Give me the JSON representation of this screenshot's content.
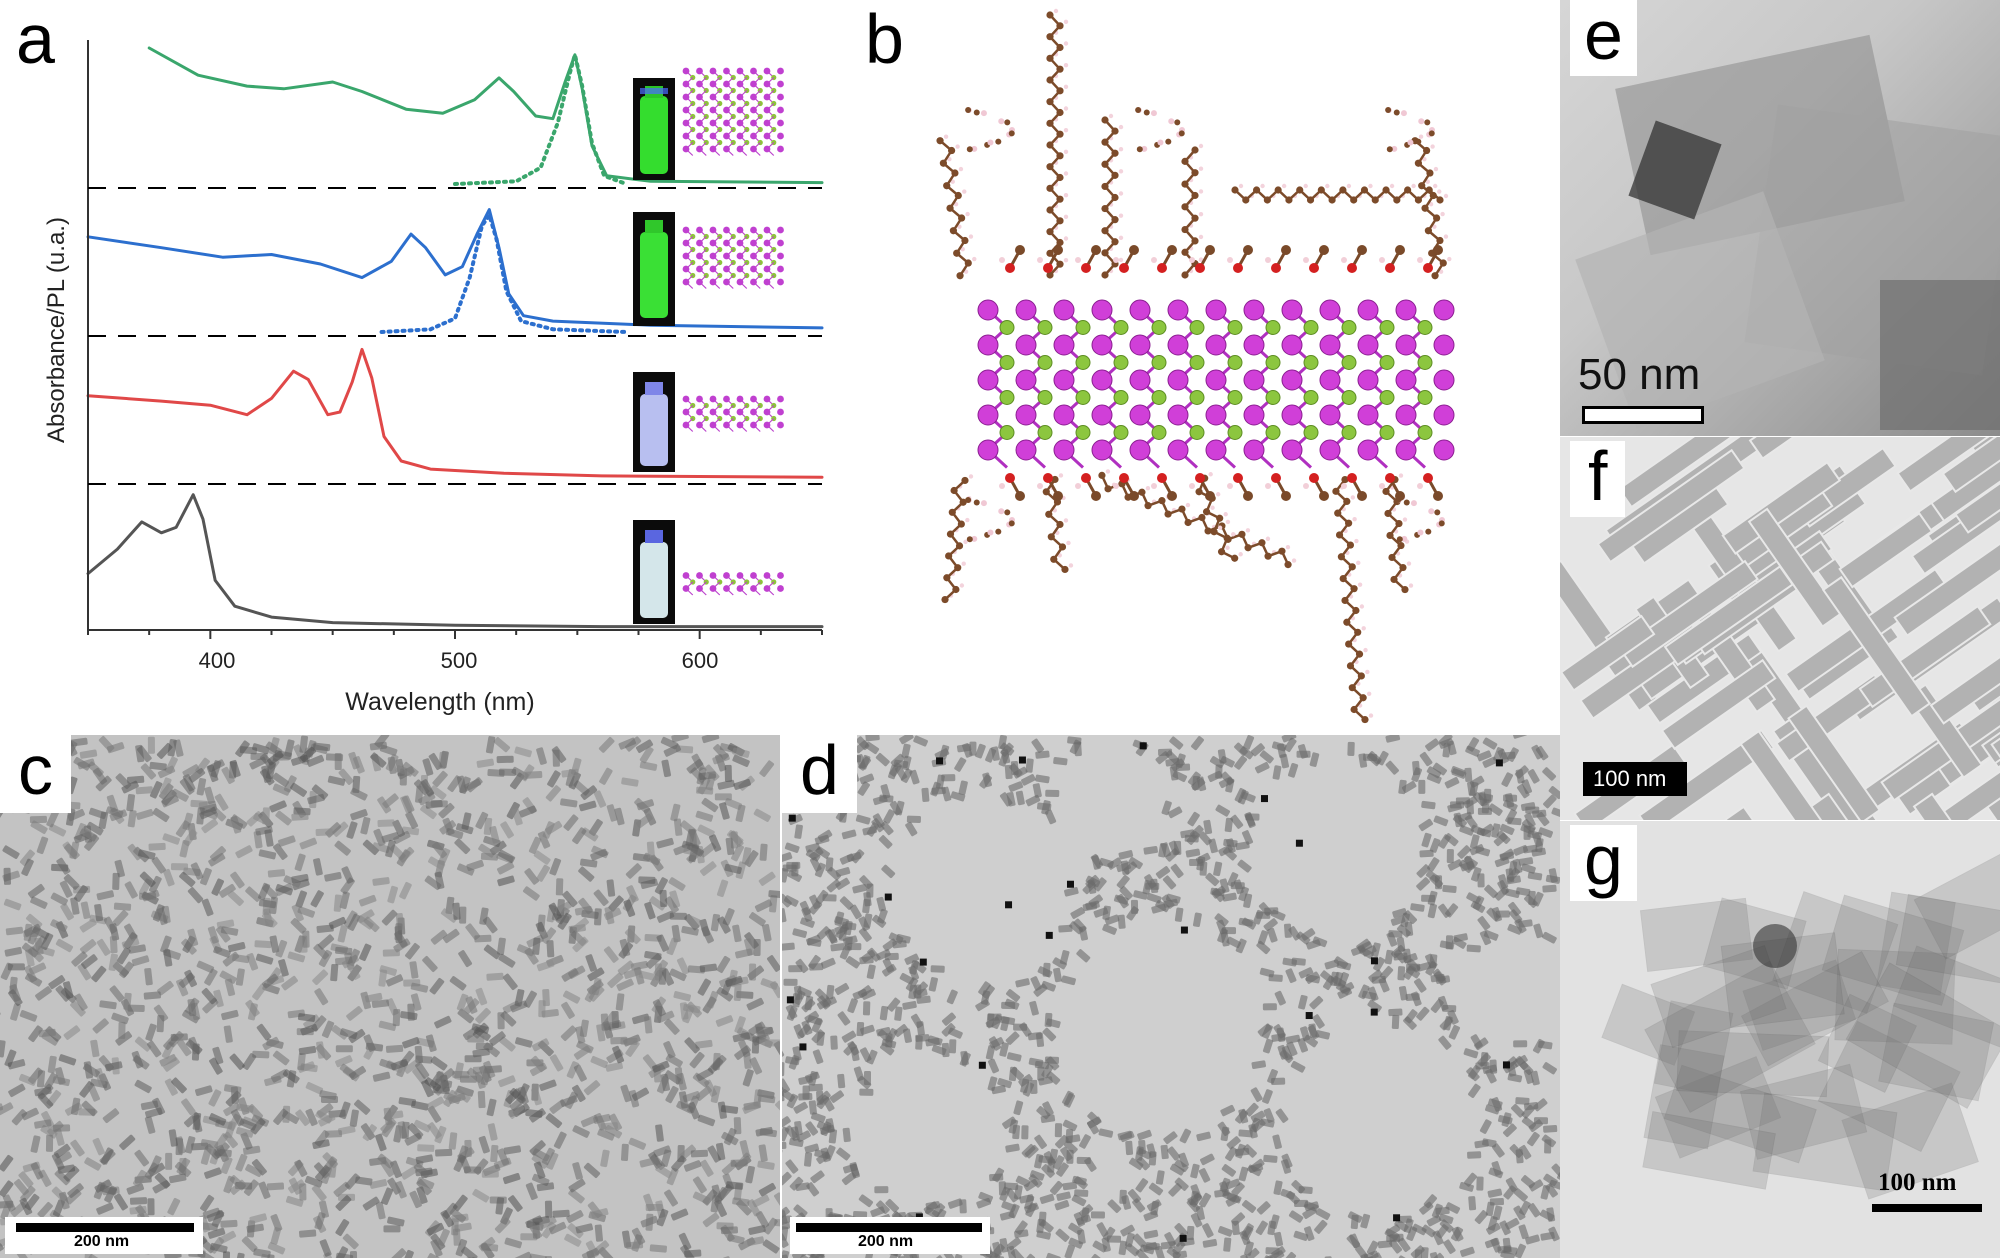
{
  "panel_a": {
    "label": "a",
    "xlabel": "Wavelength (nm)",
    "ylabel": "Absorbance/PL (u.a.)",
    "xticks": [
      "400",
      "500",
      "600"
    ]
  },
  "panel_b": {
    "label": "b"
  },
  "panel_c": {
    "label": "c",
    "scale_text": "200 nm"
  },
  "panel_d": {
    "label": "d",
    "scale_text": "200 nm"
  },
  "panel_e": {
    "label": "e",
    "scale_text": "50 nm"
  },
  "panel_f": {
    "label": "f",
    "scale_text": "100 nm"
  },
  "panel_g": {
    "label": "g",
    "scale_text": "100 nm"
  },
  "chart_data": {
    "type": "line",
    "xlabel": "Wavelength (nm)",
    "ylabel": "Absorbance/PL (u.a.)",
    "xlim": [
      350,
      650
    ],
    "x_ticks": [
      400,
      500,
      600
    ],
    "grid": false,
    "legend": "none",
    "series": [
      {
        "color": "#555555",
        "style": "solid",
        "offset": 0,
        "points": [
          [
            350,
            0.4
          ],
          [
            362,
            0.58
          ],
          [
            372,
            0.78
          ],
          [
            380,
            0.7
          ],
          [
            386,
            0.74
          ],
          [
            393,
            0.98
          ],
          [
            397,
            0.8
          ],
          [
            402,
            0.35
          ],
          [
            410,
            0.16
          ],
          [
            425,
            0.08
          ],
          [
            450,
            0.04
          ],
          [
            500,
            0.02
          ],
          [
            560,
            0.01
          ],
          [
            650,
            0.01
          ]
        ]
      },
      {
        "color": "#e04848",
        "style": "solid",
        "offset": 1,
        "points": [
          [
            350,
            0.62
          ],
          [
            380,
            0.58
          ],
          [
            400,
            0.55
          ],
          [
            415,
            0.48
          ],
          [
            425,
            0.6
          ],
          [
            434,
            0.8
          ],
          [
            440,
            0.74
          ],
          [
            448,
            0.48
          ],
          [
            453,
            0.5
          ],
          [
            458,
            0.72
          ],
          [
            462,
            0.96
          ],
          [
            466,
            0.75
          ],
          [
            471,
            0.32
          ],
          [
            478,
            0.14
          ],
          [
            490,
            0.08
          ],
          [
            520,
            0.05
          ],
          [
            560,
            0.03
          ],
          [
            650,
            0.02
          ]
        ]
      },
      {
        "color": "#2c6fce",
        "style": "solid",
        "offset": 2,
        "points": [
          [
            350,
            0.7
          ],
          [
            380,
            0.62
          ],
          [
            405,
            0.55
          ],
          [
            425,
            0.57
          ],
          [
            445,
            0.5
          ],
          [
            462,
            0.4
          ],
          [
            474,
            0.52
          ],
          [
            482,
            0.72
          ],
          [
            488,
            0.62
          ],
          [
            496,
            0.42
          ],
          [
            503,
            0.48
          ],
          [
            509,
            0.72
          ],
          [
            514,
            0.9
          ],
          [
            518,
            0.62
          ],
          [
            522,
            0.28
          ],
          [
            528,
            0.12
          ],
          [
            540,
            0.08
          ],
          [
            580,
            0.05
          ],
          [
            650,
            0.03
          ]
        ]
      },
      {
        "color": "#2c6fce",
        "style": "dotted",
        "offset": 2,
        "points": [
          [
            470,
            0.0
          ],
          [
            490,
            0.02
          ],
          [
            500,
            0.1
          ],
          [
            506,
            0.4
          ],
          [
            511,
            0.78
          ],
          [
            514,
            0.86
          ],
          [
            517,
            0.68
          ],
          [
            521,
            0.3
          ],
          [
            527,
            0.08
          ],
          [
            540,
            0.02
          ],
          [
            570,
            0.0
          ]
        ]
      },
      {
        "color": "#3aa66c",
        "style": "solid",
        "offset": 3,
        "points": [
          [
            375,
            1.0
          ],
          [
            395,
            0.8
          ],
          [
            415,
            0.72
          ],
          [
            430,
            0.7
          ],
          [
            450,
            0.75
          ],
          [
            462,
            0.68
          ],
          [
            480,
            0.55
          ],
          [
            495,
            0.52
          ],
          [
            508,
            0.62
          ],
          [
            518,
            0.78
          ],
          [
            524,
            0.68
          ],
          [
            533,
            0.5
          ],
          [
            540,
            0.48
          ],
          [
            545,
            0.75
          ],
          [
            549,
            0.95
          ],
          [
            552,
            0.7
          ],
          [
            556,
            0.28
          ],
          [
            562,
            0.06
          ],
          [
            580,
            0.02
          ],
          [
            650,
            0.01
          ]
        ]
      },
      {
        "color": "#3aa66c",
        "style": "dotted",
        "offset": 3,
        "points": [
          [
            500,
            0.0
          ],
          [
            525,
            0.02
          ],
          [
            535,
            0.12
          ],
          [
            542,
            0.45
          ],
          [
            547,
            0.82
          ],
          [
            549,
            0.95
          ],
          [
            552,
            0.72
          ],
          [
            556,
            0.3
          ],
          [
            561,
            0.06
          ],
          [
            570,
            0.0
          ]
        ]
      }
    ]
  }
}
